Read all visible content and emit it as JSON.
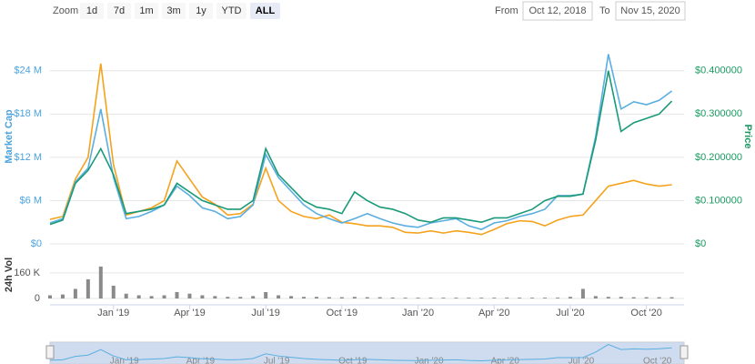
{
  "toolbar": {
    "zoom_label": "Zoom",
    "buttons": [
      "1d",
      "7d",
      "1m",
      "3m",
      "1y",
      "YTD",
      "ALL"
    ],
    "active": "ALL",
    "from_label": "From",
    "from": "Oct 12, 2018",
    "to_label": "To",
    "to": "Nov 15, 2020"
  },
  "chart_data": {
    "type": "line",
    "categories": [
      null,
      null,
      null,
      null,
      null,
      "Jan '19",
      null,
      null,
      null,
      null,
      null,
      "Apr '19",
      null,
      null,
      null,
      null,
      null,
      "Jul '19",
      null,
      null,
      null,
      null,
      null,
      "Oct '19",
      null,
      null,
      null,
      null,
      null,
      "Jan '20",
      null,
      null,
      null,
      null,
      null,
      "Apr '20",
      null,
      null,
      null,
      null,
      null,
      "Jul '20",
      null,
      null,
      null,
      null,
      null,
      "Oct '20",
      null,
      null
    ],
    "ylabel": "Market Cap",
    "y2label": "Price",
    "ylim": [
      0,
      27
    ],
    "yticks": [
      {
        "value": 0,
        "label": "$0"
      },
      {
        "value": 6,
        "label": "$6 M"
      },
      {
        "value": 12,
        "label": "$12 M"
      },
      {
        "value": 18,
        "label": "$18 M"
      },
      {
        "value": 24,
        "label": "$24 M"
      }
    ],
    "y2lim": [
      0,
      0.45
    ],
    "y2ticks": [
      {
        "value": 0,
        "label": "$0"
      },
      {
        "value": 0.1,
        "label": "$0.100000"
      },
      {
        "value": 0.2,
        "label": "$0.200000"
      },
      {
        "value": 0.3,
        "label": "$0.300000"
      },
      {
        "value": 0.4,
        "label": "$0.400000"
      }
    ],
    "grid": true,
    "series": [
      {
        "color": "#f5a21d",
        "values": [
          3.4,
          3.8,
          9,
          12,
          25,
          11,
          4,
          4.5,
          5,
          6,
          11.5,
          9,
          6.5,
          5.5,
          4,
          4.2,
          5.5,
          10.5,
          6,
          4.5,
          3.8,
          3.5,
          4,
          3,
          2.8,
          2.5,
          2.5,
          2.3,
          1.6,
          1.5,
          1.8,
          1.5,
          1.8,
          1.6,
          1.3,
          2,
          2.8,
          3.2,
          3.1,
          2.5,
          3.3,
          3.8,
          4,
          6,
          8,
          8.4,
          8.8,
          8.3,
          8,
          8.2
        ]
      },
      {
        "color": "#5aaee0",
        "values": [
          2.9,
          3.5,
          8.6,
          10.5,
          18.7,
          9.2,
          3.5,
          3.8,
          4.5,
          5.4,
          8,
          6.7,
          5,
          4.5,
          3.5,
          3.8,
          5.4,
          12.4,
          9.2,
          7.3,
          5.4,
          4.2,
          3.5,
          2.9,
          3.5,
          4.2,
          3.5,
          2.9,
          2.5,
          2.3,
          2.9,
          3.2,
          3.5,
          2.5,
          2,
          2.9,
          3.2,
          3.8,
          4.2,
          4.8,
          6.7,
          6.7,
          6.9,
          14.9,
          26.3,
          18.7,
          19.7,
          19.3,
          19.9,
          21.2
        ]
      },
      {
        "color": "#1a9a78",
        "axis": "y2",
        "values": [
          0.045,
          0.055,
          0.14,
          0.17,
          0.22,
          0.16,
          0.07,
          0.075,
          0.08,
          0.09,
          0.14,
          0.12,
          0.1,
          0.09,
          0.08,
          0.08,
          0.1,
          0.22,
          0.16,
          0.13,
          0.1,
          0.085,
          0.08,
          0.07,
          0.12,
          0.1,
          0.085,
          0.08,
          0.07,
          0.055,
          0.05,
          0.06,
          0.06,
          0.055,
          0.05,
          0.06,
          0.06,
          0.07,
          0.08,
          0.1,
          0.11,
          0.11,
          0.115,
          0.24,
          0.4,
          0.26,
          0.28,
          0.29,
          0.3,
          0.33
        ]
      }
    ],
    "volume": {
      "type": "bar",
      "ylabel": "24h Vol",
      "ylim": [
        0,
        245
      ],
      "yticks": [
        0,
        {
          "value": 160,
          "label": "160 K"
        }
      ],
      "color": "#8a8a8a",
      "values": [
        20,
        25,
        60,
        120,
        200,
        80,
        30,
        20,
        15,
        20,
        40,
        30,
        20,
        15,
        10,
        10,
        15,
        40,
        20,
        15,
        10,
        10,
        8,
        8,
        10,
        8,
        8,
        6,
        5,
        5,
        5,
        5,
        5,
        5,
        5,
        5,
        5,
        5,
        5,
        5,
        5,
        10,
        60,
        15,
        10,
        10,
        8,
        8,
        8,
        8
      ]
    }
  }
}
